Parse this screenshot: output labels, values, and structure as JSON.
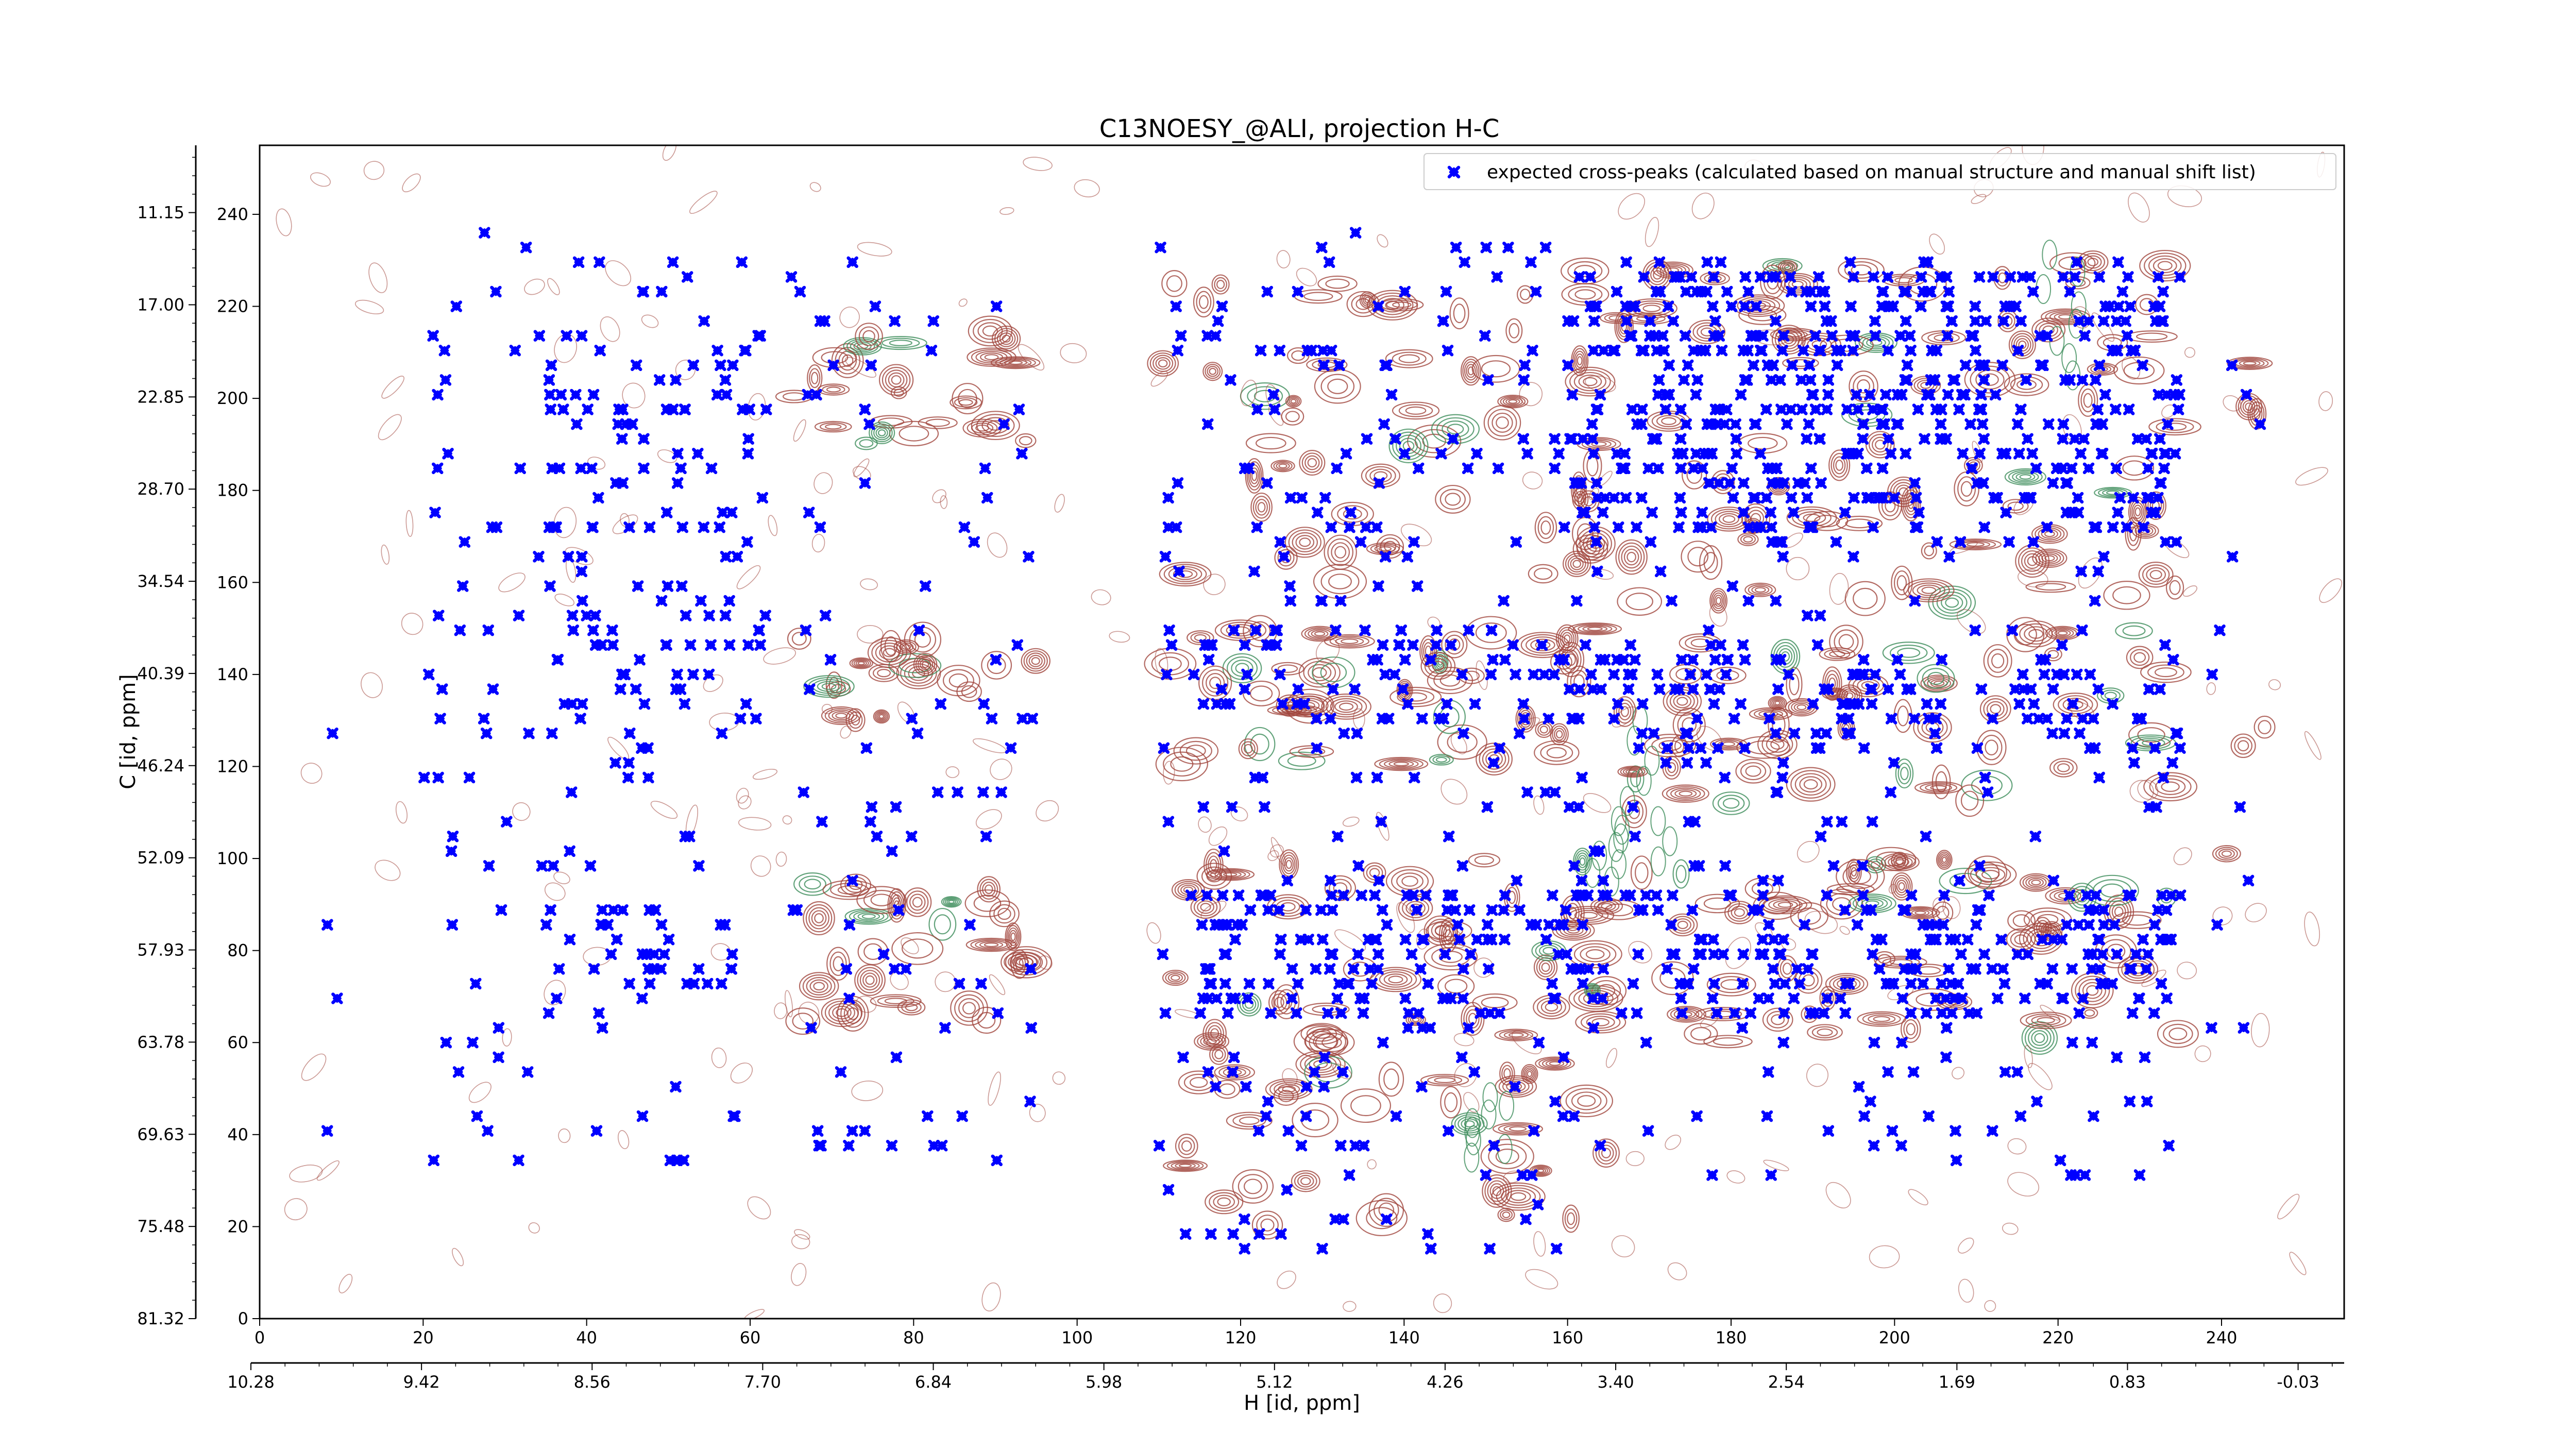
{
  "chart_data": {
    "type": "scatter",
    "title": "C13NOESY_@ALI, projection H-C",
    "xlabel": "H [id, ppm]",
    "ylabel": "C [id, ppm]",
    "xlim": [
      0,
      255
    ],
    "ylim": [
      0,
      255
    ],
    "x_ticks": [
      0,
      20,
      40,
      60,
      80,
      100,
      120,
      140,
      160,
      180,
      200,
      220,
      240
    ],
    "y_ticks": [
      0,
      20,
      40,
      60,
      80,
      100,
      120,
      140,
      160,
      180,
      200,
      220,
      240
    ],
    "x_ppm_ticks": [
      "10.28",
      "9.42",
      "8.56",
      "7.70",
      "6.84",
      "5.98",
      "5.12",
      "4.26",
      "3.40",
      "2.54",
      "1.69",
      "0.83",
      "-0.03"
    ],
    "y_ppm_ticks": [
      "81.32",
      "75.48",
      "69.63",
      "63.78",
      "57.93",
      "52.09",
      "46.24",
      "40.39",
      "34.54",
      "28.70",
      "22.85",
      "17.00",
      "11.15"
    ],
    "legend": {
      "position": "top-right",
      "label": "expected cross-peaks (calculated based on manual structure and manual shift list)"
    },
    "grid": false,
    "colors": {
      "marker": "#0000ff",
      "contour_positive": "#a0453c",
      "contour_negative": "#3c8c5a"
    },
    "series": [
      {
        "name": "expected cross-peaks (calculated based on manual structure and manual shift list)",
        "marker": "x",
        "clusters": [
          {
            "x": [
              8,
              11
            ],
            "y": [
              32,
              240
            ],
            "density": 0.02
          },
          {
            "x": [
              20,
              62
            ],
            "y": [
              33,
              235
            ],
            "density": 0.05
          },
          {
            "x": [
              35,
              60
            ],
            "y": [
              70,
              90
            ],
            "density": 0.2
          },
          {
            "x": [
              35,
              60
            ],
            "y": [
              130,
              160
            ],
            "density": 0.15
          },
          {
            "x": [
              35,
              60
            ],
            "y": [
              165,
              210
            ],
            "density": 0.15
          },
          {
            "x": [
              65,
              95
            ],
            "y": [
              35,
              230
            ],
            "density": 0.05
          },
          {
            "x": [
              110,
              160
            ],
            "y": [
              12,
              235
            ],
            "density": 0.07
          },
          {
            "x": [
              115,
              160
            ],
            "y": [
              65,
              95
            ],
            "density": 0.25
          },
          {
            "x": [
              115,
              160
            ],
            "y": [
              130,
              150
            ],
            "density": 0.2
          },
          {
            "x": [
              160,
              235
            ],
            "y": [
              65,
              95
            ],
            "density": 0.25
          },
          {
            "x": [
              160,
              235
            ],
            "y": [
              120,
              145
            ],
            "density": 0.2
          },
          {
            "x": [
              160,
              235
            ],
            "y": [
              170,
              230
            ],
            "density": 0.3
          },
          {
            "x": [
              160,
              235
            ],
            "y": [
              30,
              230
            ],
            "density": 0.06
          },
          {
            "x": [
              238,
              245
            ],
            "y": [
              60,
              230
            ],
            "density": 0.03
          }
        ]
      }
    ]
  }
}
